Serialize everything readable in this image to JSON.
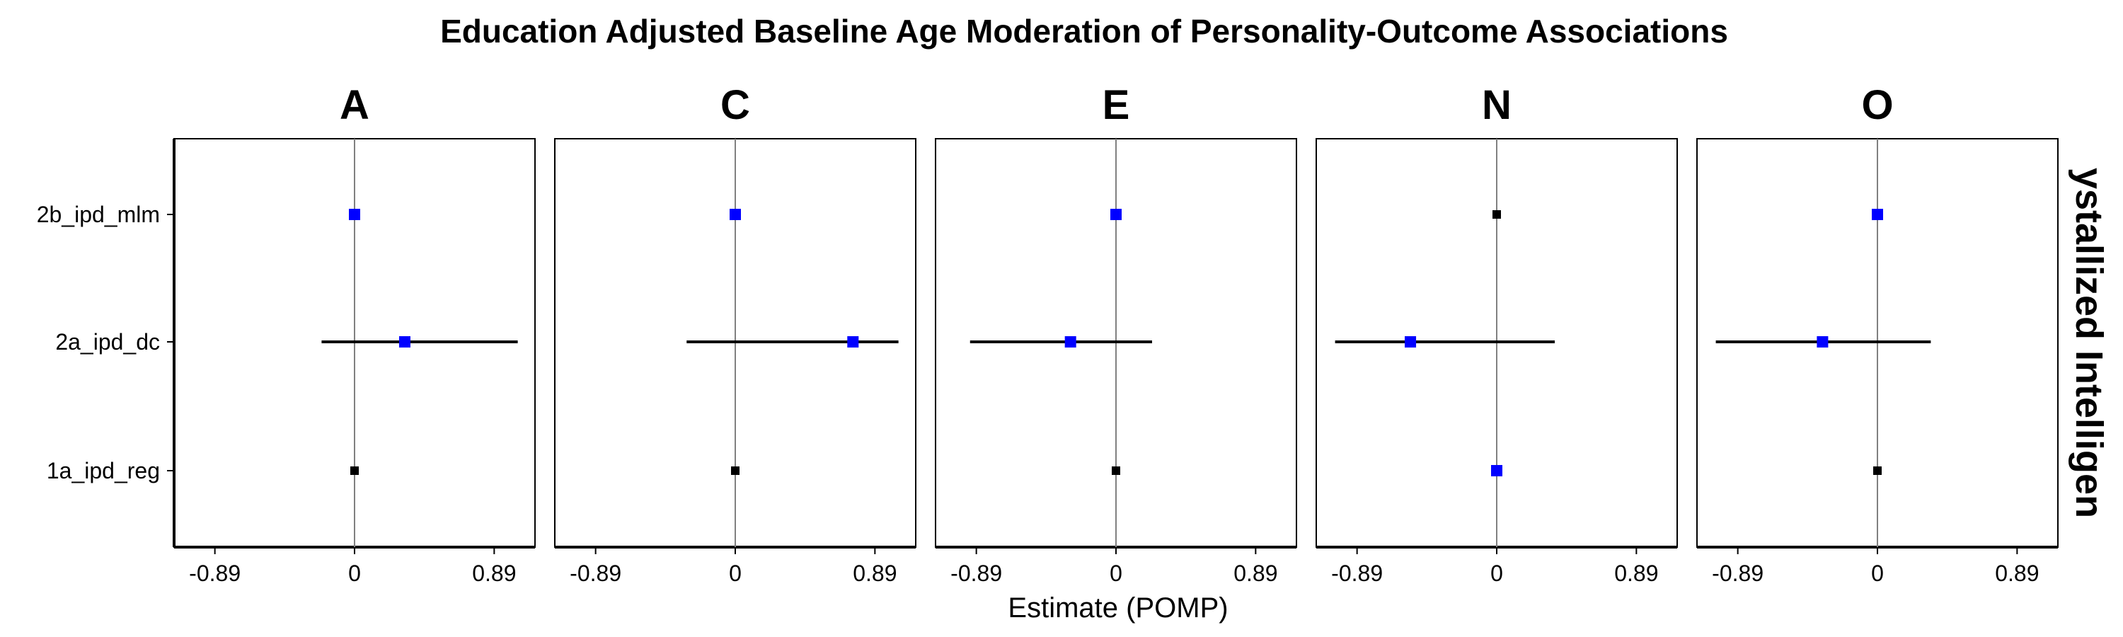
{
  "chart_data": {
    "type": "scatter",
    "title": "Education Adjusted Baseline Age Moderation of Personality-Outcome Associations",
    "xlabel": "Estimate (POMP)",
    "ylabel": "",
    "row_strip": "Crystallized Intelligence",
    "row_strip_visible": "ystallized Intelligen",
    "xticks": [
      "-0.89",
      "0",
      "0.89"
    ],
    "xlim": [
      -1.15,
      1.15
    ],
    "y_categories": [
      "2b_ipd_mlm",
      "2a_ipd_dc",
      "1a_ipd_reg"
    ],
    "colors": {
      "significant": "#0000ff",
      "nonsignificant": "#000000",
      "zero_line": "#808080"
    },
    "grid": false,
    "panels": [
      {
        "name": "A",
        "points": [
          {
            "model": "2b_ipd_mlm",
            "estimate": 0.0,
            "lower": null,
            "upper": null,
            "color": "blue"
          },
          {
            "model": "2a_ipd_dc",
            "estimate": 0.32,
            "lower": -0.21,
            "upper": 1.04,
            "color": "blue"
          },
          {
            "model": "1a_ipd_reg",
            "estimate": 0.0,
            "lower": null,
            "upper": null,
            "color": "black"
          }
        ]
      },
      {
        "name": "C",
        "points": [
          {
            "model": "2b_ipd_mlm",
            "estimate": 0.0,
            "lower": null,
            "upper": null,
            "color": "blue"
          },
          {
            "model": "2a_ipd_dc",
            "estimate": 0.75,
            "lower": -0.31,
            "upper": 1.04,
            "color": "blue"
          },
          {
            "model": "1a_ipd_reg",
            "estimate": 0.0,
            "lower": null,
            "upper": null,
            "color": "black"
          }
        ]
      },
      {
        "name": "E",
        "points": [
          {
            "model": "2b_ipd_mlm",
            "estimate": 0.0,
            "lower": null,
            "upper": null,
            "color": "blue"
          },
          {
            "model": "2a_ipd_dc",
            "estimate": -0.29,
            "lower": -0.93,
            "upper": 0.23,
            "color": "blue"
          },
          {
            "model": "1a_ipd_reg",
            "estimate": 0.0,
            "lower": null,
            "upper": null,
            "color": "black"
          }
        ]
      },
      {
        "name": "N",
        "points": [
          {
            "model": "2b_ipd_mlm",
            "estimate": 0.0,
            "lower": null,
            "upper": null,
            "color": "black"
          },
          {
            "model": "2a_ipd_dc",
            "estimate": -0.55,
            "lower": -1.03,
            "upper": 0.37,
            "color": "blue"
          },
          {
            "model": "1a_ipd_reg",
            "estimate": 0.0,
            "lower": null,
            "upper": null,
            "color": "blue"
          }
        ]
      },
      {
        "name": "O",
        "points": [
          {
            "model": "2b_ipd_mlm",
            "estimate": 0.0,
            "lower": null,
            "upper": null,
            "color": "blue"
          },
          {
            "model": "2a_ipd_dc",
            "estimate": -0.35,
            "lower": -1.03,
            "upper": 0.34,
            "color": "blue"
          },
          {
            "model": "1a_ipd_reg",
            "estimate": 0.0,
            "lower": null,
            "upper": null,
            "color": "black"
          }
        ]
      }
    ]
  }
}
